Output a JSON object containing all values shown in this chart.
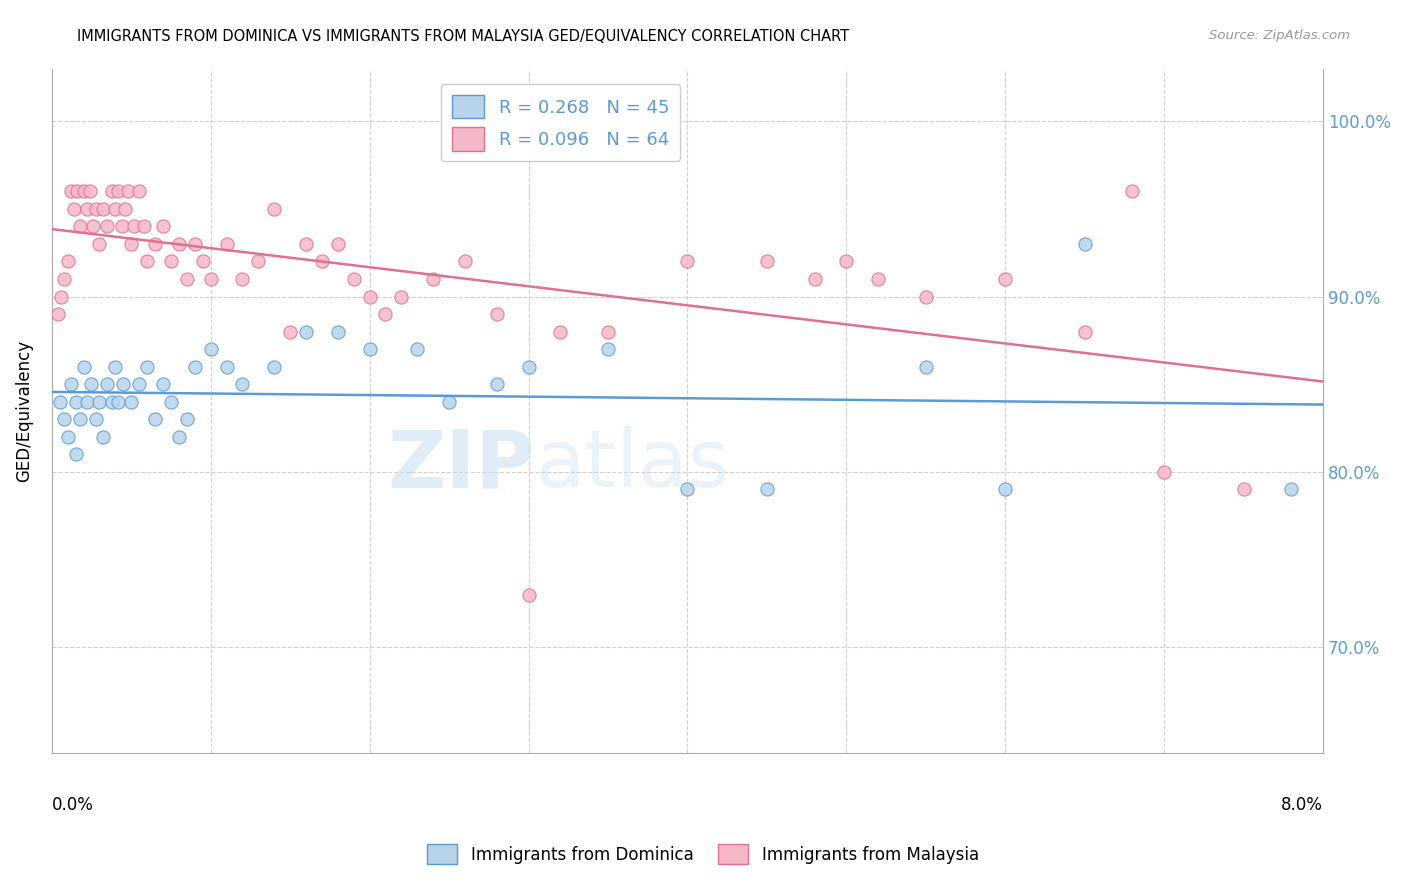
{
  "title": "IMMIGRANTS FROM DOMINICA VS IMMIGRANTS FROM MALAYSIA GED/EQUIVALENCY CORRELATION CHART",
  "source": "Source: ZipAtlas.com",
  "ylabel": "GED/Equivalency",
  "yticks": [
    70.0,
    80.0,
    90.0,
    100.0
  ],
  "ytick_labels": [
    "70.0%",
    "80.0%",
    "90.0%",
    "100.0%"
  ],
  "xmin": 0.0,
  "xmax": 8.0,
  "ymin": 64.0,
  "ymax": 103.0,
  "watermark_zip": "ZIP",
  "watermark_atlas": "atlas",
  "legend_R1": "R = 0.268",
  "legend_N1": "N = 45",
  "legend_R2": "R = 0.096",
  "legend_N2": "N = 64",
  "color_dominica_fill": "#b8d4ea",
  "color_dominica_edge": "#5b9bd5",
  "color_malaysia_fill": "#f5b8c8",
  "color_malaysia_edge": "#e07090",
  "color_dominica_line": "#5b9bd5",
  "color_malaysia_line": "#e07090",
  "dominica_x": [
    0.05,
    0.08,
    0.1,
    0.12,
    0.15,
    0.15,
    0.18,
    0.2,
    0.22,
    0.25,
    0.28,
    0.3,
    0.32,
    0.35,
    0.38,
    0.4,
    0.42,
    0.45,
    0.5,
    0.55,
    0.6,
    0.65,
    0.7,
    0.75,
    0.8,
    0.85,
    0.9,
    1.0,
    1.1,
    1.2,
    1.4,
    1.6,
    1.8,
    2.0,
    2.3,
    2.5,
    2.8,
    3.0,
    3.5,
    4.0,
    4.5,
    5.5,
    6.0,
    6.5,
    7.8
  ],
  "dominica_y": [
    84,
    83,
    82,
    85,
    84,
    81,
    83,
    86,
    84,
    85,
    83,
    84,
    82,
    85,
    84,
    86,
    84,
    85,
    84,
    85,
    86,
    83,
    85,
    84,
    82,
    83,
    86,
    87,
    86,
    85,
    86,
    88,
    88,
    87,
    87,
    84,
    85,
    86,
    87,
    79,
    79,
    86,
    79,
    93,
    79
  ],
  "malaysia_x": [
    0.04,
    0.06,
    0.08,
    0.1,
    0.12,
    0.14,
    0.16,
    0.18,
    0.2,
    0.22,
    0.24,
    0.26,
    0.28,
    0.3,
    0.32,
    0.35,
    0.38,
    0.4,
    0.42,
    0.44,
    0.46,
    0.48,
    0.5,
    0.52,
    0.55,
    0.58,
    0.6,
    0.65,
    0.7,
    0.75,
    0.8,
    0.85,
    0.9,
    0.95,
    1.0,
    1.1,
    1.2,
    1.3,
    1.4,
    1.5,
    1.6,
    1.7,
    1.8,
    1.9,
    2.0,
    2.1,
    2.2,
    2.4,
    2.6,
    2.8,
    3.0,
    3.2,
    3.5,
    4.0,
    4.5,
    4.8,
    5.0,
    5.2,
    5.5,
    6.0,
    6.5,
    7.0,
    7.5,
    6.8
  ],
  "malaysia_y": [
    89,
    90,
    91,
    92,
    96,
    95,
    96,
    94,
    96,
    95,
    96,
    94,
    95,
    93,
    95,
    94,
    96,
    95,
    96,
    94,
    95,
    96,
    93,
    94,
    96,
    94,
    92,
    93,
    94,
    92,
    93,
    91,
    93,
    92,
    91,
    93,
    91,
    92,
    95,
    88,
    93,
    92,
    93,
    91,
    90,
    89,
    90,
    91,
    92,
    89,
    73,
    88,
    88,
    92,
    92,
    91,
    92,
    91,
    90,
    91,
    88,
    80,
    79,
    96
  ]
}
